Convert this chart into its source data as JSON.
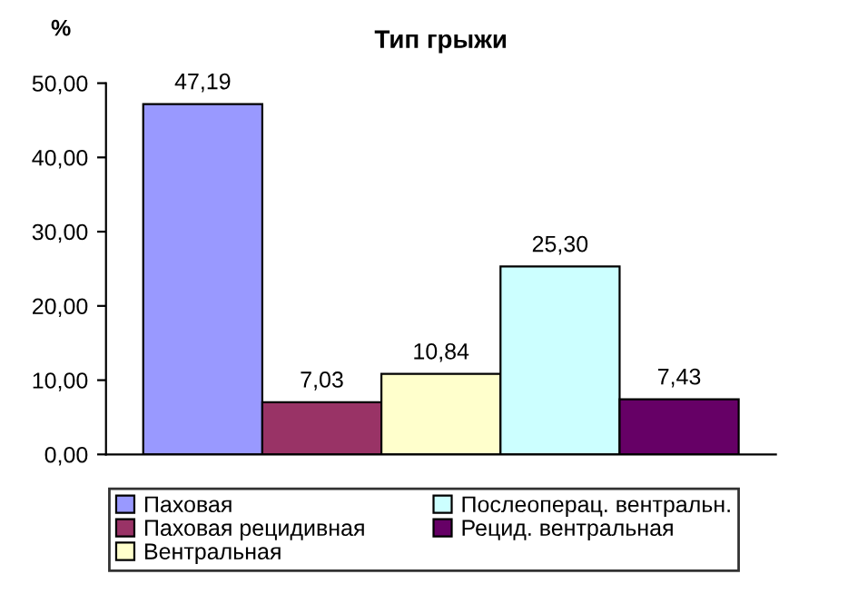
{
  "chart_data": {
    "type": "bar",
    "title": "Тип грыжи",
    "ylabel": "%",
    "categories": [
      null
    ],
    "series": [
      {
        "name": "Паховая",
        "color": "#9999ff",
        "values": [
          47.19
        ],
        "value_labels": [
          "47,19"
        ]
      },
      {
        "name": "Паховая рецидивная",
        "color": "#993366",
        "values": [
          7.03
        ],
        "value_labels": [
          "7,03"
        ]
      },
      {
        "name": "Вентральная",
        "color": "#ffffcc",
        "values": [
          10.84
        ],
        "value_labels": [
          "10,84"
        ]
      },
      {
        "name": "Послеоперац. вентральн.",
        "color": "#ccffff",
        "values": [
          25.3
        ],
        "value_labels": [
          "25,30"
        ]
      },
      {
        "name": "Рецид. вентральная",
        "color": "#660066",
        "values": [
          7.43
        ],
        "value_labels": [
          "7,43"
        ]
      }
    ],
    "ylim": [
      0,
      50
    ],
    "yticks": [
      {
        "value": 0,
        "label": "0,00"
      },
      {
        "value": 10,
        "label": "10,00"
      },
      {
        "value": 20,
        "label": "20,00"
      },
      {
        "value": 30,
        "label": "30,00"
      },
      {
        "value": 40,
        "label": "40,00"
      },
      {
        "value": 50,
        "label": "50,00"
      }
    ],
    "grid": false,
    "legend": "bottom"
  }
}
